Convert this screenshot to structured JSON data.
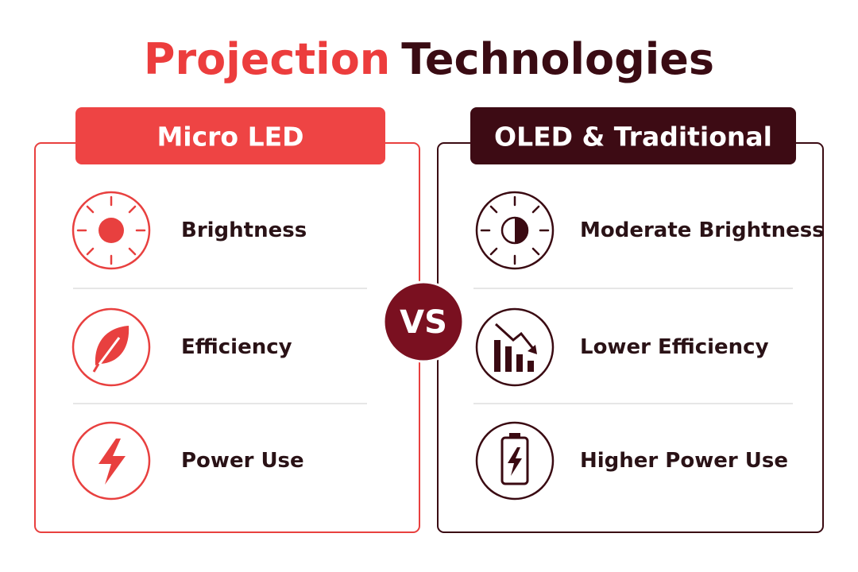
{
  "title": {
    "highlight": "Projection",
    "rest": "Technologies"
  },
  "panels": [
    {
      "header": "Micro LED",
      "items": [
        "Brightness",
        "Efficiency",
        "Power Use"
      ]
    },
    {
      "header": "OLED & Traditional",
      "items": [
        "Moderate Brightness",
        "Lower Efficiency",
        "Higher Power Use"
      ]
    }
  ],
  "badge": "VS"
}
